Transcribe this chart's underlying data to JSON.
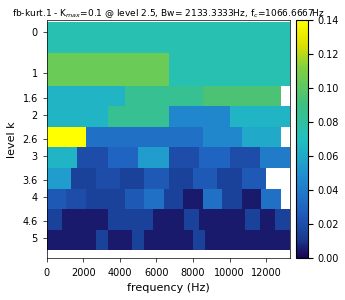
{
  "title": "fb-kurt.1 - K_max=0.1 @ level 2.5, Bw= 2133.3333Hz, f_c=1066.6667Hz",
  "xlabel": "frequency (Hz)",
  "ylabel": "level k",
  "xlim": [
    0,
    13333
  ],
  "ylim_bottom": 5.5,
  "ylim_top": -0.3,
  "xticks": [
    0,
    2000,
    4000,
    6000,
    8000,
    10000,
    12000
  ],
  "yticks": [
    0,
    1,
    1.6,
    2,
    2.6,
    3,
    3.6,
    4,
    4.6,
    5
  ],
  "colorbar_ticks": [
    0,
    0.02,
    0.04,
    0.06,
    0.08,
    0.1,
    0.12,
    0.14
  ],
  "vmin": 0,
  "vmax": 0.14,
  "total_bw": 13333.33,
  "levels": [
    0,
    1,
    1.6,
    2,
    2.6,
    3,
    3.6,
    4,
    4.6,
    5
  ],
  "bw": [
    13333.33,
    6666.67,
    4266.67,
    3333.33,
    2133.33,
    1666.67,
    1333.33,
    1066.67,
    833.33,
    666.67
  ],
  "heights": [
    0.5,
    0.6,
    0.4,
    0.6,
    0.4,
    0.6,
    0.4,
    0.6,
    0.4,
    0.5
  ],
  "rows": [
    [
      0.075
    ],
    [
      0.105,
      0.075
    ],
    [
      0.065,
      0.085,
      0.095
    ],
    [
      0.065,
      0.085,
      0.045,
      0.065
    ],
    [
      0.14,
      0.035,
      0.035,
      0.035,
      0.045,
      0.06
    ],
    [
      0.065,
      0.02,
      0.03,
      0.055,
      0.02,
      0.03,
      0.02,
      0.04
    ],
    [
      0.055,
      0.015,
      0.02,
      0.015,
      0.025,
      0.015,
      0.025,
      0.015,
      0.025
    ],
    [
      0.025,
      0.02,
      0.015,
      0.015,
      0.025,
      0.035,
      0.015,
      0.005,
      0.035,
      0.015,
      0.005,
      0.035
    ],
    [
      0.015,
      0.005,
      0.005,
      0.005,
      0.015,
      0.015,
      0.015,
      0.005,
      0.005,
      0.015,
      0.005,
      0.005,
      0.005,
      0.015,
      0.005,
      0.015
    ],
    [
      0.005,
      0.005,
      0.005,
      0.005,
      0.015,
      0.005,
      0.005,
      0.015,
      0.005,
      0.005,
      0.005,
      0.005,
      0.015,
      0.005,
      0.005,
      0.005,
      0.005,
      0.005,
      0.005,
      0.005
    ]
  ]
}
